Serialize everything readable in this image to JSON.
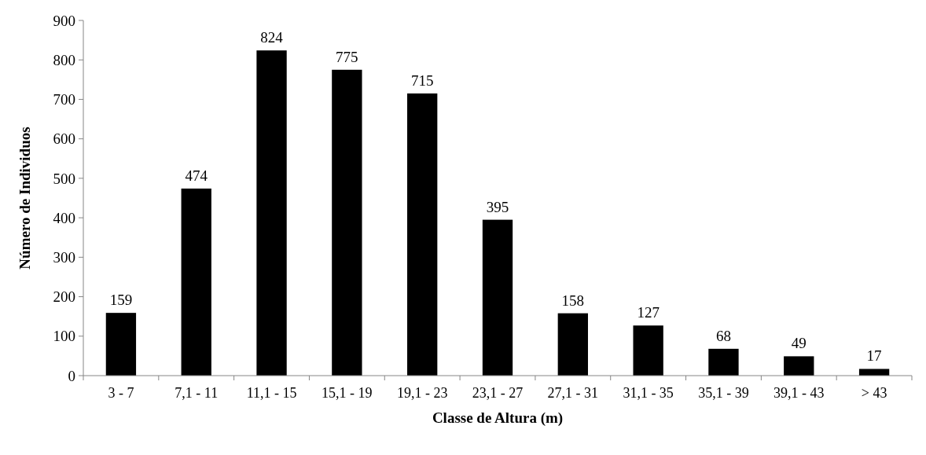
{
  "chart_data": {
    "type": "bar",
    "xlabel": "Classe de Altura (m)",
    "ylabel": "Número de Individuos",
    "categories": [
      "3 - 7",
      "7,1 - 11",
      "11,1 - 15",
      "15,1 - 19",
      "19,1 - 23",
      "23,1 - 27",
      "27,1 - 31",
      "31,1 - 35",
      "35,1 - 39",
      "39,1 - 43",
      "> 43"
    ],
    "values": [
      159,
      474,
      824,
      775,
      715,
      395,
      158,
      127,
      68,
      49,
      17
    ],
    "color": "#000000",
    "ylim": [
      0,
      900
    ],
    "yticks": [
      0,
      100,
      200,
      300,
      400,
      500,
      600,
      700,
      800,
      900
    ],
    "data_labels": true,
    "grid": false
  }
}
